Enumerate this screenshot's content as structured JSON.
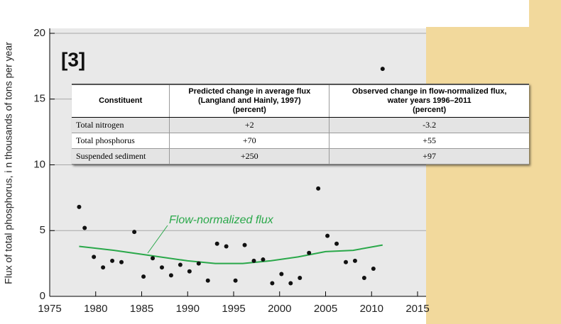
{
  "chart_data": {
    "type": "scatter",
    "y_label": "Flux of total phosphorus, i n thousands of tons per year",
    "annotation": "[3]",
    "xlim": [
      1975,
      2015
    ],
    "xticks": [
      1975,
      1980,
      1985,
      1990,
      1995,
      2000,
      2005,
      2010,
      2015
    ],
    "ylim": [
      0,
      20
    ],
    "yticks": [
      0,
      5,
      10,
      15,
      20
    ],
    "grid": "y",
    "points": {
      "color": "#111111",
      "x": [
        1978.2,
        1978.8,
        1979.8,
        1980.8,
        1981.8,
        1982.8,
        1984.2,
        1985.2,
        1986.2,
        1987.2,
        1988.2,
        1989.2,
        1990.2,
        1991.2,
        1992.2,
        1993.2,
        1994.2,
        1995.2,
        1996.2,
        1997.2,
        1998.2,
        1999.2,
        2000.2,
        2001.2,
        2002.2,
        2003.2,
        2004.2,
        2005.2,
        2006.2,
        2007.2,
        2008.2,
        2009.2,
        2010.2,
        2011.2
      ],
      "values": [
        6.8,
        5.2,
        3.0,
        2.2,
        2.7,
        2.6,
        4.9,
        1.5,
        2.9,
        2.2,
        1.6,
        2.4,
        1.9,
        2.5,
        1.2,
        4.0,
        3.8,
        1.2,
        3.9,
        2.7,
        2.8,
        1.0,
        1.7,
        1.0,
        1.4,
        3.3,
        8.2,
        4.6,
        4.0,
        2.6,
        2.7,
        1.4,
        2.1,
        17.3
      ]
    },
    "series": [
      {
        "name": "Flow-normalized flux",
        "color": "#2aa84a",
        "x": [
          1978.2,
          1982,
          1986,
          1990,
          1993,
          1996,
          1999,
          2002,
          2005,
          2008,
          2011.2
        ],
        "values": [
          3.8,
          3.5,
          3.1,
          2.7,
          2.5,
          2.5,
          2.7,
          3.0,
          3.4,
          3.5,
          3.9
        ]
      }
    ]
  },
  "table": {
    "headers": [
      [
        "Constituent"
      ],
      [
        "Predicted change in average flux",
        "(Langland and Hainly, 1997)",
        "(percent)"
      ],
      [
        "Observed change in flow-normalized flux,",
        "water years 1996–2011",
        "(percent)"
      ]
    ],
    "rows": [
      [
        "Total nitrogen",
        "+2",
        "-3.2"
      ],
      [
        "Total phosphorus",
        "+70",
        "+55"
      ],
      [
        "Suspended sediment",
        "+250",
        "+97"
      ]
    ]
  }
}
